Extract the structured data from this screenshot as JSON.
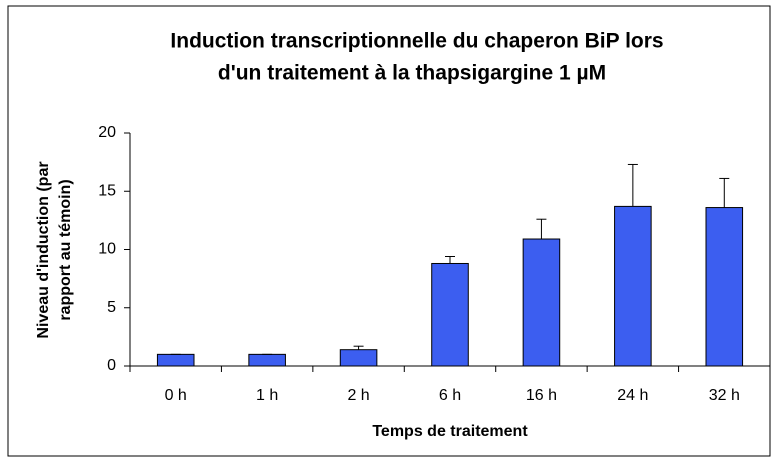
{
  "chart_data": {
    "type": "bar",
    "title": [
      "Induction transcriptionnelle du chaperon BiP lors",
      "d'un traitement à la thapsigargine 1 µM"
    ],
    "x_label": "Temps de traitement",
    "y_label": [
      "Niveau d'induction (par",
      "rapport au témoin)"
    ],
    "categories": [
      "0 h",
      "1 h",
      "2 h",
      "6 h",
      "16 h",
      "24 h",
      "32 h"
    ],
    "values": [
      1.0,
      1.0,
      1.4,
      8.8,
      10.9,
      13.7,
      13.6
    ],
    "errors": [
      0,
      0,
      0.3,
      0.6,
      1.7,
      3.6,
      2.5
    ],
    "color": "#3c5ef0",
    "ylim": [
      0,
      20
    ],
    "yticks": [
      0,
      5,
      10,
      15,
      20
    ],
    "grid": false
  }
}
